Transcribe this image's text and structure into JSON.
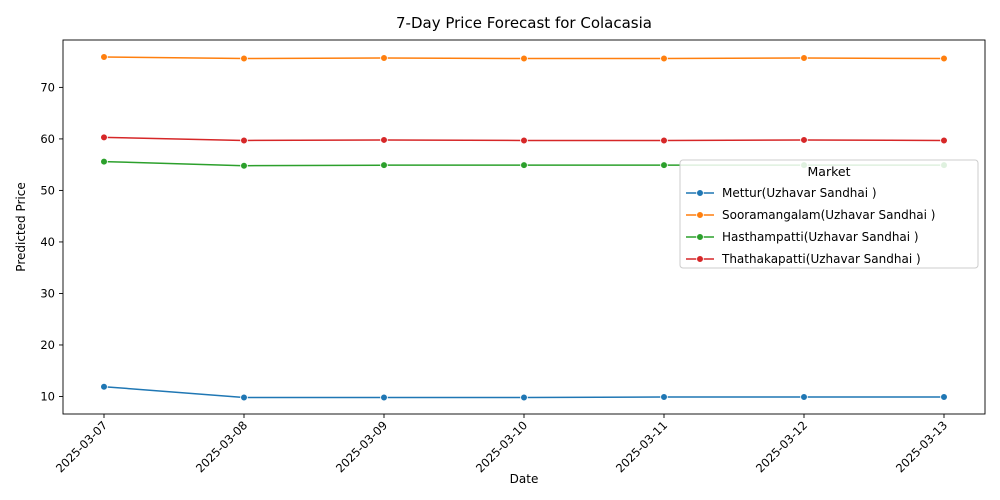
{
  "chart_data": {
    "type": "line",
    "title": "7-Day Price Forecast for Colacasia",
    "xlabel": "Date",
    "ylabel": "Predicted Price",
    "x": [
      "2025-03-07",
      "2025-03-08",
      "2025-03-09",
      "2025-03-10",
      "2025-03-11",
      "2025-03-12",
      "2025-03-13"
    ],
    "ylim": [
      6.6,
      79.2
    ],
    "yticks": [
      10,
      20,
      30,
      40,
      50,
      60,
      70
    ],
    "grid": false,
    "legend": {
      "title": "Market",
      "placement": "center-right"
    },
    "series": [
      {
        "name": "Mettur(Uzhavar Sandhai )",
        "color": "#1f77b4",
        "values": [
          11.9,
          9.8,
          9.8,
          9.8,
          9.9,
          9.9,
          9.9
        ]
      },
      {
        "name": "Sooramangalam(Uzhavar Sandhai )",
        "color": "#ff7f0e",
        "values": [
          75.9,
          75.6,
          75.7,
          75.6,
          75.6,
          75.7,
          75.6
        ]
      },
      {
        "name": "Hasthampatti(Uzhavar Sandhai )",
        "color": "#2ca02c",
        "values": [
          55.6,
          54.8,
          54.9,
          54.9,
          54.9,
          54.9,
          54.9
        ]
      },
      {
        "name": "Thathakapatti(Uzhavar Sandhai )",
        "color": "#d62728",
        "values": [
          60.3,
          59.7,
          59.8,
          59.7,
          59.7,
          59.8,
          59.7
        ]
      }
    ]
  }
}
